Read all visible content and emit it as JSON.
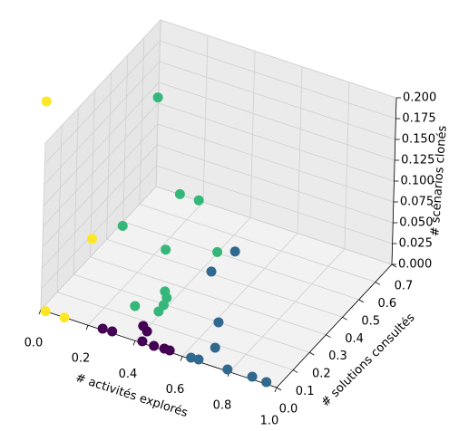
{
  "chart_data": {
    "type": "scatter3d",
    "xlabel": "# activités explorés",
    "ylabel": "# solutions consultés",
    "zlabel": "# scénarios clonés",
    "xlim": [
      0,
      1
    ],
    "ylim": [
      0,
      0.7
    ],
    "zlim": [
      0,
      0.2
    ],
    "xticks": [
      {
        "value": 0,
        "label": "0.0"
      },
      {
        "value": 0.2,
        "label": "0.2"
      },
      {
        "value": 0.4,
        "label": "0.4"
      },
      {
        "value": 0.6,
        "label": "0.6"
      },
      {
        "value": 0.8,
        "label": "0.8"
      },
      {
        "value": 1,
        "label": "1.0"
      }
    ],
    "yticks": [
      {
        "value": 0,
        "label": "0.0"
      },
      0.1,
      0.2,
      0.3,
      0.4,
      0.5,
      0.6,
      0.7
    ],
    "zticks": [
      {
        "value": 0,
        "label": "0.000"
      },
      {
        "value": 0.025,
        "label": "0.025"
      },
      {
        "value": 0.05,
        "label": "0.050"
      },
      {
        "value": 0.075,
        "label": "0.075"
      },
      {
        "value": 0.1,
        "label": "0.100"
      },
      {
        "value": 0.125,
        "label": "0.125"
      },
      {
        "value": 0.15,
        "label": "0.150"
      },
      {
        "value": 0.175,
        "label": "0.175"
      },
      {
        "value": 0.2,
        "label": "0.200"
      }
    ],
    "grid": true,
    "series": [
      {
        "color": "#fde725",
        "x": [
          0,
          0.14,
          0.02,
          0.1
        ],
        "y": [
          0,
          0.1,
          0,
          0
        ],
        "z": [
          0.25,
          0.077,
          0,
          0
        ]
      },
      {
        "color": "#35b779",
        "x": [
          0.3,
          0.37,
          0.45,
          0.2,
          0.35,
          0.5,
          0.347,
          0.372,
          0.384,
          0.387,
          0.294
        ],
        "y": [
          0.25,
          0.3,
          0.3,
          0.2,
          0.25,
          0.35,
          0.257,
          0.232,
          0.196,
          0.161,
          0.151
        ],
        "z": [
          0.23,
          0.11,
          0.11,
          0.077,
          0.052,
          0.042,
          0,
          0,
          0,
          0,
          0
        ]
      },
      {
        "color": "#31688e",
        "x": [
          0.453,
          0.437,
          0.614,
          0.68,
          0.632,
          0.662,
          0.786,
          0.888,
          0.95
        ],
        "y": [
          0.531,
          0.41,
          0.2,
          0.085,
          0.007,
          0.01,
          0.008,
          0.012,
          0.009
        ],
        "z": [
          0,
          0,
          0,
          0,
          0,
          0,
          0,
          0,
          0
        ]
      },
      {
        "color": "#440154",
        "x": [
          0.258,
          0.297,
          0.381,
          0.41,
          0.425,
          0.476,
          0.518,
          0.541
        ],
        "y": [
          0.006,
          0.008,
          0.076,
          0.058,
          0.008,
          0.005,
          0.008,
          0.008
        ],
        "z": [
          0,
          0,
          0,
          0,
          0,
          0,
          0,
          0
        ]
      }
    ]
  }
}
